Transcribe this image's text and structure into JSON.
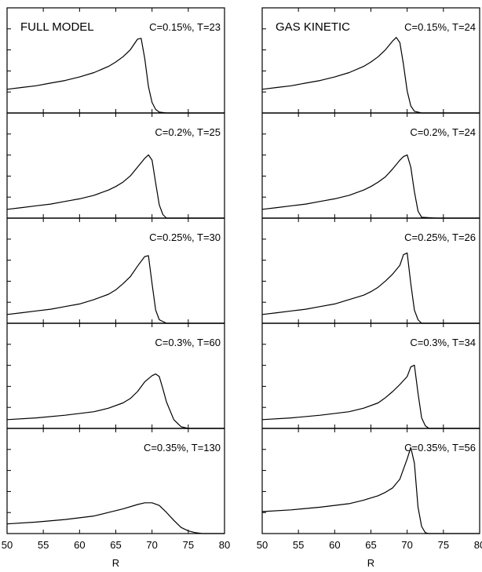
{
  "chart_data": [
    {
      "type": "line",
      "title": "FULL MODEL",
      "xlabel": "R",
      "xlim": [
        50,
        80
      ],
      "x_ticks": [
        "50",
        "55",
        "60",
        "65",
        "70",
        "75",
        "80"
      ],
      "grid": false,
      "panels": [
        {
          "label": "C=0.15%, T=23",
          "series": [
            {
              "x": [
                50,
                52,
                54,
                56,
                58,
                60,
                62,
                64,
                65,
                66,
                67,
                68,
                68.5,
                69,
                69.5,
                70,
                70.5,
                71,
                72,
                74,
                80
              ],
              "y": [
                0.27,
                0.29,
                0.31,
                0.34,
                0.37,
                0.41,
                0.46,
                0.53,
                0.58,
                0.64,
                0.72,
                0.84,
                0.85,
                0.62,
                0.3,
                0.12,
                0.04,
                0.01,
                0,
                0,
                0
              ]
            }
          ]
        },
        {
          "label": "C=0.2%, T=25",
          "series": [
            {
              "x": [
                50,
                52,
                54,
                56,
                58,
                60,
                62,
                64,
                65,
                66,
                67,
                68,
                69,
                69.5,
                70,
                70.5,
                71,
                71.5,
                72,
                74,
                80
              ],
              "y": [
                0.1,
                0.12,
                0.14,
                0.16,
                0.19,
                0.22,
                0.26,
                0.32,
                0.36,
                0.41,
                0.48,
                0.58,
                0.68,
                0.72,
                0.66,
                0.4,
                0.15,
                0.04,
                0,
                0,
                0
              ]
            }
          ]
        },
        {
          "label": "C=0.25%, T=30",
          "series": [
            {
              "x": [
                50,
                52,
                54,
                56,
                58,
                60,
                62,
                64,
                65,
                66,
                67,
                68,
                69,
                69.5,
                70,
                70.5,
                71,
                72,
                74,
                80
              ],
              "y": [
                0.1,
                0.12,
                0.14,
                0.16,
                0.19,
                0.22,
                0.27,
                0.33,
                0.38,
                0.45,
                0.53,
                0.65,
                0.76,
                0.77,
                0.45,
                0.15,
                0.04,
                0,
                0,
                0
              ]
            }
          ]
        },
        {
          "label": "C=0.3%, T=60",
          "series": [
            {
              "x": [
                50,
                54,
                58,
                62,
                64,
                66,
                67,
                68,
                69,
                70,
                70.5,
                71,
                71.5,
                72,
                73,
                74,
                75,
                80
              ],
              "y": [
                0.1,
                0.12,
                0.15,
                0.19,
                0.23,
                0.29,
                0.34,
                0.42,
                0.53,
                0.6,
                0.62,
                0.59,
                0.45,
                0.3,
                0.1,
                0.02,
                0,
                0
              ]
            }
          ]
        },
        {
          "label": "C=0.35%, T=130",
          "series": [
            {
              "x": [
                50,
                54,
                58,
                62,
                64,
                66,
                68,
                69,
                70,
                71,
                72,
                73,
                74,
                75,
                76,
                77,
                78,
                80
              ],
              "y": [
                0.11,
                0.13,
                0.16,
                0.2,
                0.24,
                0.28,
                0.33,
                0.35,
                0.35,
                0.32,
                0.24,
                0.15,
                0.07,
                0.03,
                0.01,
                0,
                0,
                0
              ]
            }
          ]
        }
      ]
    },
    {
      "type": "line",
      "title": "GAS KINETIC",
      "xlabel": "R",
      "xlim": [
        50,
        80
      ],
      "x_ticks": [
        "50",
        "55",
        "60",
        "65",
        "70",
        "75",
        "80"
      ],
      "grid": false,
      "panels": [
        {
          "label": "C=0.15%, T=24",
          "series": [
            {
              "x": [
                50,
                52,
                54,
                56,
                58,
                60,
                62,
                64,
                65,
                66,
                67,
                68,
                68.5,
                69,
                69.5,
                70,
                70.5,
                71,
                72,
                74,
                80
              ],
              "y": [
                0.27,
                0.29,
                0.31,
                0.34,
                0.37,
                0.41,
                0.46,
                0.53,
                0.58,
                0.64,
                0.72,
                0.82,
                0.86,
                0.8,
                0.55,
                0.25,
                0.08,
                0.02,
                0,
                0,
                0
              ]
            }
          ]
        },
        {
          "label": "C=0.2%, T=24",
          "series": [
            {
              "x": [
                50,
                52,
                54,
                56,
                58,
                60,
                62,
                64,
                65,
                66,
                67,
                68,
                69,
                69.5,
                70,
                70.5,
                71,
                71.5,
                72,
                74,
                80
              ],
              "y": [
                0.1,
                0.12,
                0.14,
                0.16,
                0.19,
                0.22,
                0.26,
                0.32,
                0.36,
                0.41,
                0.47,
                0.56,
                0.66,
                0.7,
                0.72,
                0.58,
                0.3,
                0.08,
                0.01,
                0,
                0
              ]
            }
          ]
        },
        {
          "label": "C=0.25%, T=26",
          "series": [
            {
              "x": [
                50,
                52,
                54,
                56,
                58,
                60,
                62,
                64,
                65,
                66,
                67,
                68,
                69,
                69.5,
                70,
                70.5,
                71,
                71.5,
                72,
                74,
                80
              ],
              "y": [
                0.1,
                0.12,
                0.14,
                0.16,
                0.19,
                0.22,
                0.27,
                0.32,
                0.36,
                0.41,
                0.48,
                0.56,
                0.66,
                0.78,
                0.8,
                0.45,
                0.15,
                0.04,
                0,
                0,
                0
              ]
            }
          ]
        },
        {
          "label": "C=0.3%, T=34",
          "series": [
            {
              "x": [
                50,
                54,
                58,
                62,
                64,
                66,
                67,
                68,
                69,
                70,
                70.5,
                71,
                71.5,
                72,
                72.5,
                73,
                74,
                80
              ],
              "y": [
                0.1,
                0.12,
                0.15,
                0.19,
                0.23,
                0.29,
                0.35,
                0.42,
                0.5,
                0.59,
                0.7,
                0.72,
                0.4,
                0.12,
                0.03,
                0,
                0,
                0
              ]
            }
          ]
        },
        {
          "label": "C=0.35%, T=56",
          "series": [
            {
              "x": [
                50,
                54,
                58,
                62,
                64,
                66,
                67,
                68,
                69,
                70,
                70.5,
                71,
                71.5,
                72,
                72.5,
                73,
                74,
                80
              ],
              "y": [
                0.25,
                0.27,
                0.3,
                0.34,
                0.38,
                0.43,
                0.47,
                0.52,
                0.62,
                0.85,
                0.98,
                0.8,
                0.3,
                0.08,
                0.01,
                0,
                0,
                0
              ]
            }
          ]
        }
      ]
    }
  ]
}
